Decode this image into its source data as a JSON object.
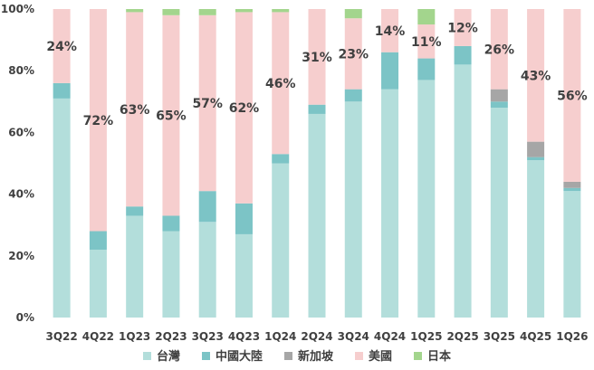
{
  "chart_data": {
    "type": "bar",
    "stacked": true,
    "categories": [
      "3Q22",
      "4Q22",
      "1Q23",
      "2Q23",
      "3Q23",
      "4Q23",
      "1Q24",
      "2Q24",
      "3Q24",
      "4Q24",
      "1Q25",
      "2Q25",
      "3Q25",
      "4Q25",
      "1Q26"
    ],
    "series": [
      {
        "name": "台灣",
        "color": "#b3dedb",
        "values": [
          71,
          22,
          33,
          28,
          31,
          27,
          50,
          66,
          70,
          74,
          77,
          82,
          68,
          51,
          41
        ]
      },
      {
        "name": "中國大陸",
        "color": "#7cc4c6",
        "values": [
          5,
          6,
          3,
          5,
          10,
          10,
          3,
          3,
          4,
          12,
          7,
          6,
          2,
          1,
          1
        ]
      },
      {
        "name": "新加坡",
        "color": "#a6a6a6",
        "values": [
          0,
          0,
          0,
          0,
          0,
          0,
          0,
          0,
          0,
          0,
          0,
          0,
          4,
          5,
          2
        ]
      },
      {
        "name": "美國",
        "color": "#f6cece",
        "values": [
          24,
          72,
          63,
          65,
          57,
          62,
          46,
          31,
          23,
          14,
          11,
          12,
          26,
          43,
          56
        ]
      },
      {
        "name": "日本",
        "color": "#a3d58d",
        "values": [
          0,
          0,
          1,
          2,
          2,
          1,
          1,
          0,
          3,
          0,
          5,
          0,
          0,
          0,
          0
        ]
      }
    ],
    "labels": [
      "24%",
      "72%",
      "63%",
      "65%",
      "57%",
      "62%",
      "46%",
      "31%",
      "23%",
      "14%",
      "11%",
      "12%",
      "26%",
      "43%",
      "56%"
    ],
    "ylim": [
      0,
      100
    ],
    "yticks": [
      "0%",
      "20%",
      "40%",
      "60%",
      "80%",
      "100%"
    ],
    "legend_position": "bottom",
    "grid": false
  }
}
